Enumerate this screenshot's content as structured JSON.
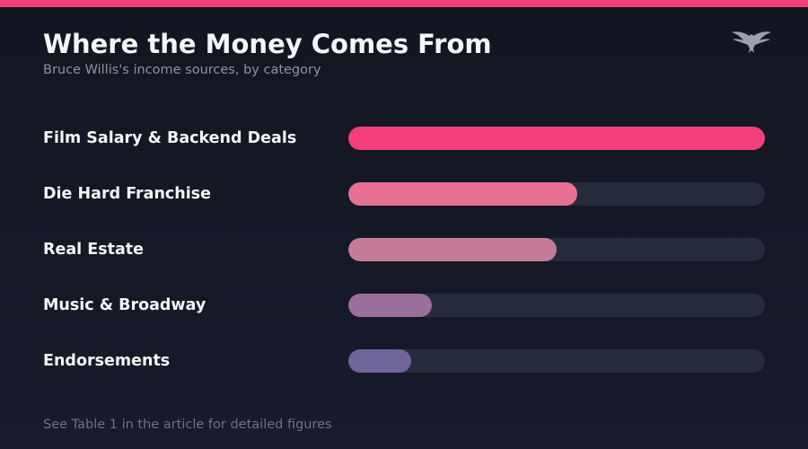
{
  "header": {
    "title": "Where the Money Comes From",
    "subtitle": "Bruce Willis's income sources, by category"
  },
  "logo": {
    "icon": "eagle-icon"
  },
  "footnote": "See Table 1 in the article for detailed figures",
  "colors": {
    "accent": "#f43f7a",
    "track": "#262b3c",
    "bars": [
      "#f43f7a",
      "#e87193",
      "#c57a98",
      "#9a6f9a",
      "#6f659b"
    ]
  },
  "chart_data": {
    "type": "bar",
    "orientation": "horizontal",
    "title": "Where the Money Comes From",
    "subtitle": "Bruce Willis's income sources, by category",
    "xlabel": "",
    "ylabel": "",
    "categories": [
      "Film Salary & Backend Deals",
      "Die Hard Franchise",
      "Real Estate",
      "Music & Broadway",
      "Endorsements"
    ],
    "values": [
      100,
      55,
      50,
      20,
      15
    ],
    "xlim": [
      0,
      100
    ],
    "grid": false,
    "legend": "none"
  }
}
